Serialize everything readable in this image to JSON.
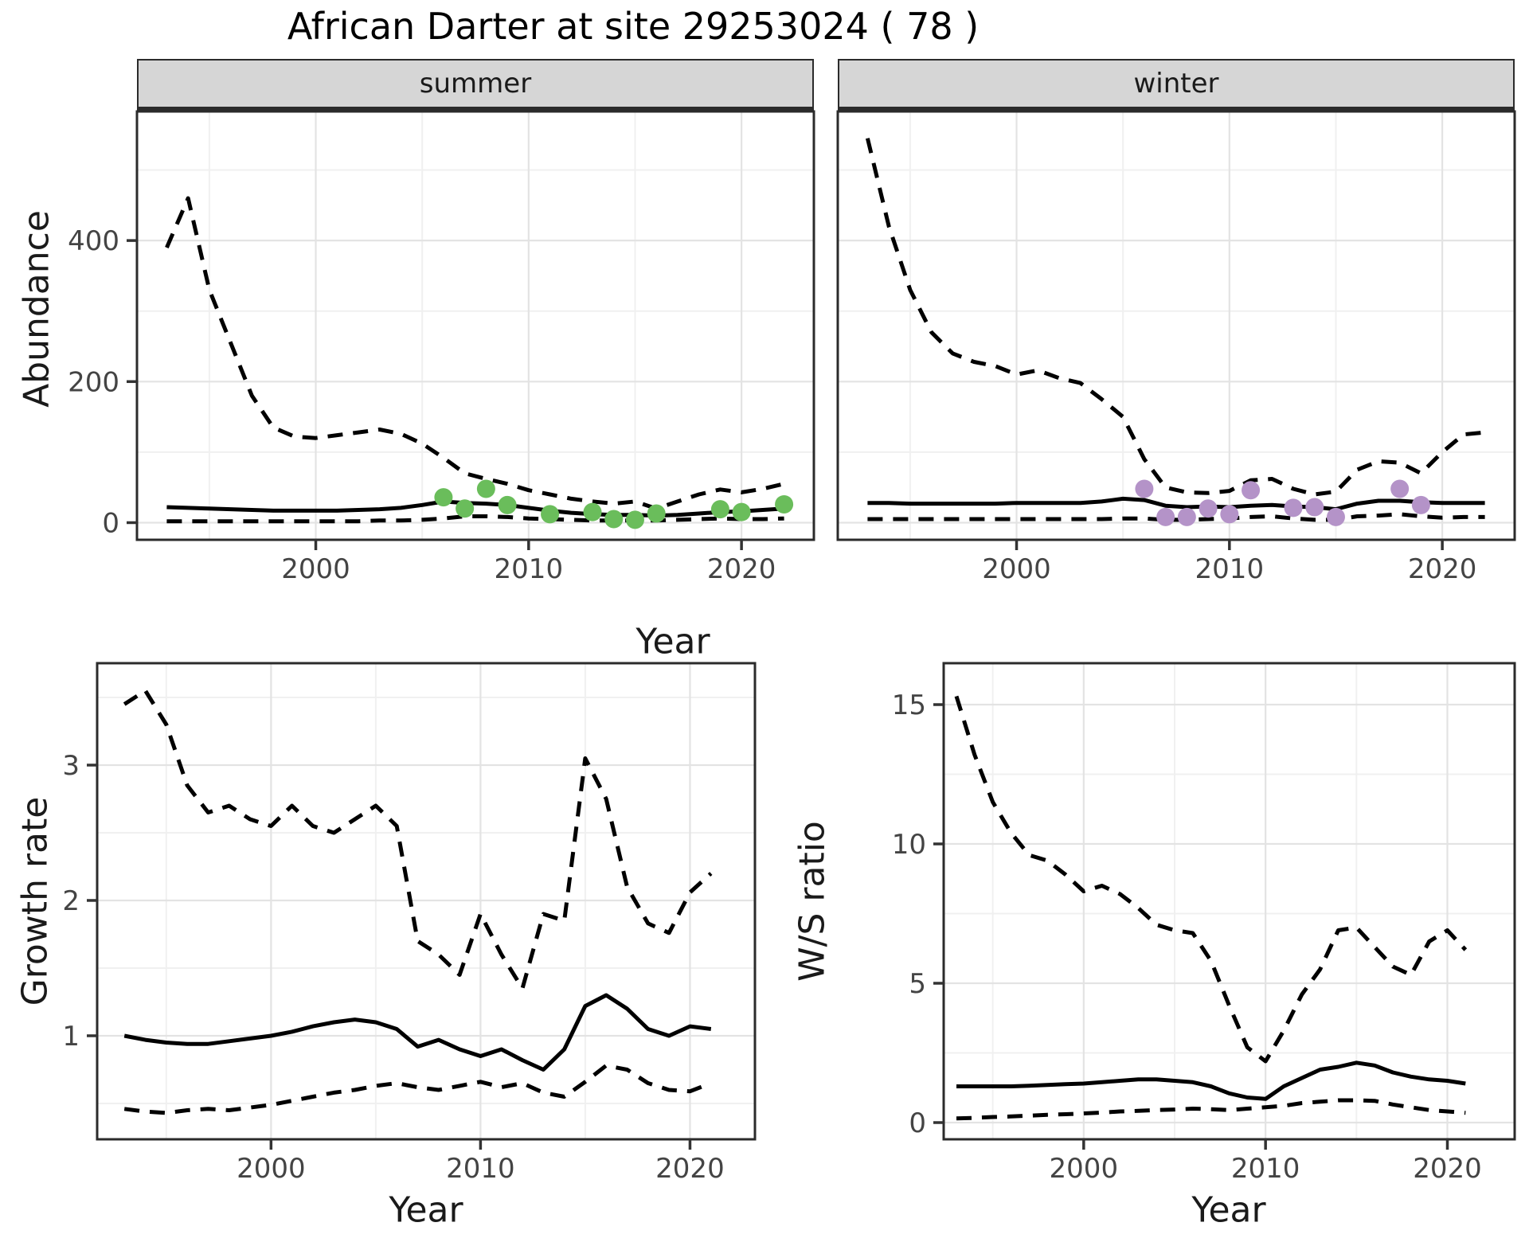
{
  "title": "African Darter at site 29253024 ( 78 )",
  "facets": [
    {
      "label": "summer"
    },
    {
      "label": "winter"
    }
  ],
  "axes": {
    "top_y": "Abundance",
    "top_x": "Year",
    "bottom_left_y": "Growth rate",
    "bottom_left_x": "Year",
    "bottom_right_y": "W/S ratio",
    "bottom_right_x": "Year"
  },
  "colors": {
    "summer_point": "#6abd5b",
    "winter_point": "#b493c8",
    "line": "#000000",
    "strip_bg": "#d6d6d6",
    "grid_major": "#e3e3e3",
    "grid_minor": "#f0f0f0",
    "panel_border": "#2b2b2b",
    "tick_text": "#444444"
  },
  "chart_data": [
    {
      "panel": "summer",
      "type": "line",
      "facet_label": "summer",
      "xlabel": "Year",
      "ylabel": "Abundance",
      "xlim": [
        1991.6,
        2023.4
      ],
      "ylim": [
        -24.3,
        583
      ],
      "xticks": [
        2000,
        2010,
        2020
      ],
      "yticks": [
        0,
        200,
        400
      ],
      "xticks_minor": [
        1995,
        2005,
        2015
      ],
      "yticks_minor": [
        100,
        300,
        500
      ],
      "x": [
        1993,
        1994,
        1995,
        1996,
        1997,
        1998,
        1999,
        2000,
        2001,
        2002,
        2003,
        2004,
        2005,
        2006,
        2007,
        2008,
        2009,
        2010,
        2011,
        2012,
        2013,
        2014,
        2015,
        2016,
        2017,
        2018,
        2019,
        2020,
        2021,
        2022
      ],
      "series": [
        {
          "name": "upper_ci",
          "style": "dashed",
          "values": [
            390,
            460,
            330,
            255,
            180,
            135,
            122,
            120,
            124,
            128,
            132,
            126,
            112,
            92,
            70,
            62,
            55,
            46,
            40,
            34,
            30,
            27,
            30,
            20,
            30,
            40,
            47,
            43,
            48,
            55
          ]
        },
        {
          "name": "mean",
          "style": "solid",
          "values": [
            22,
            21,
            20,
            19,
            18,
            17,
            17,
            17,
            17,
            18,
            19,
            21,
            25,
            30,
            28,
            27,
            25,
            21,
            17,
            14,
            12,
            11,
            11,
            10,
            11,
            13,
            15,
            16,
            18,
            20
          ]
        },
        {
          "name": "lower_ci",
          "style": "dashed",
          "values": [
            2,
            2,
            2,
            2,
            2,
            2,
            2,
            2,
            2,
            2,
            3,
            3,
            4,
            6,
            9,
            9,
            8,
            6,
            5,
            4,
            3,
            3,
            3,
            3,
            4,
            5,
            6,
            5,
            5,
            6
          ]
        }
      ],
      "points": {
        "name": "observed-counts",
        "color_key": "summer_point",
        "data": [
          [
            2006,
            36
          ],
          [
            2007,
            20
          ],
          [
            2008,
            48
          ],
          [
            2009,
            25
          ],
          [
            2011,
            12
          ],
          [
            2013,
            15
          ],
          [
            2014,
            5
          ],
          [
            2015,
            4
          ],
          [
            2016,
            13
          ],
          [
            2019,
            19
          ],
          [
            2020,
            15
          ],
          [
            2022,
            26
          ]
        ]
      }
    },
    {
      "panel": "winter",
      "type": "line",
      "facet_label": "winter",
      "xlabel": "Year",
      "ylabel": "Abundance",
      "xlim": [
        1991.6,
        2023.4
      ],
      "ylim": [
        -24.3,
        583
      ],
      "xticks": [
        2000,
        2010,
        2020
      ],
      "yticks": [
        0,
        200,
        400
      ],
      "xticks_minor": [
        1995,
        2005,
        2015
      ],
      "yticks_minor": [
        100,
        300,
        500
      ],
      "x": [
        1993,
        1994,
        1995,
        1996,
        1997,
        1998,
        1999,
        2000,
        2001,
        2002,
        2003,
        2004,
        2005,
        2006,
        2007,
        2008,
        2009,
        2010,
        2011,
        2012,
        2013,
        2014,
        2015,
        2016,
        2017,
        2018,
        2019,
        2020,
        2021,
        2022
      ],
      "series": [
        {
          "name": "upper_ci",
          "style": "dashed",
          "values": [
            545,
            420,
            330,
            270,
            240,
            228,
            222,
            210,
            216,
            205,
            198,
            175,
            150,
            90,
            50,
            43,
            42,
            45,
            60,
            62,
            48,
            40,
            44,
            75,
            87,
            85,
            70,
            100,
            125,
            128
          ]
        },
        {
          "name": "mean",
          "style": "solid",
          "values": [
            28,
            28,
            27,
            27,
            27,
            27,
            27,
            28,
            28,
            28,
            28,
            30,
            34,
            32,
            24,
            22,
            23,
            22,
            24,
            25,
            23,
            22,
            19,
            27,
            31,
            31,
            29,
            28,
            28,
            28
          ]
        },
        {
          "name": "lower_ci",
          "style": "dashed",
          "values": [
            5,
            5,
            5,
            5,
            5,
            5,
            5,
            5,
            5,
            5,
            5,
            5,
            6,
            6,
            4,
            4,
            5,
            6,
            8,
            9,
            6,
            4,
            4,
            9,
            10,
            12,
            9,
            7,
            8,
            8
          ]
        }
      ],
      "points": {
        "name": "observed-counts",
        "color_key": "winter_point",
        "data": [
          [
            2006,
            48
          ],
          [
            2007,
            8
          ],
          [
            2008,
            8
          ],
          [
            2009,
            20
          ],
          [
            2010,
            12
          ],
          [
            2011,
            46
          ],
          [
            2013,
            21
          ],
          [
            2014,
            22
          ],
          [
            2015,
            8
          ],
          [
            2018,
            48
          ],
          [
            2019,
            25
          ]
        ]
      }
    },
    {
      "panel": "growth",
      "type": "line",
      "facet_label": "",
      "xlabel": "Year",
      "ylabel": "Growth rate",
      "xlim": [
        1991.7,
        2023.1
      ],
      "ylim": [
        0.235,
        3.753
      ],
      "xticks": [
        2000,
        2010,
        2020
      ],
      "yticks": [
        1,
        2,
        3
      ],
      "xticks_minor": [
        1995,
        2005,
        2015
      ],
      "yticks_minor": [
        0.5,
        1.5,
        2.5,
        3.5
      ],
      "x": [
        1993,
        1994,
        1995,
        1996,
        1997,
        1998,
        1999,
        2000,
        2001,
        2002,
        2003,
        2004,
        2005,
        2006,
        2007,
        2008,
        2009,
        2010,
        2011,
        2012,
        2013,
        2014,
        2015,
        2016,
        2017,
        2018,
        2019,
        2020,
        2021
      ],
      "series": [
        {
          "name": "upper_ci",
          "style": "dashed",
          "values": [
            3.45,
            3.55,
            3.3,
            2.85,
            2.65,
            2.7,
            2.6,
            2.55,
            2.7,
            2.55,
            2.5,
            2.6,
            2.7,
            2.55,
            1.7,
            1.6,
            1.45,
            1.9,
            1.6,
            1.35,
            1.9,
            1.85,
            3.05,
            2.75,
            2.1,
            1.83,
            1.76,
            2.06,
            2.2
          ]
        },
        {
          "name": "mean",
          "style": "solid",
          "values": [
            1.0,
            0.97,
            0.95,
            0.94,
            0.94,
            0.96,
            0.98,
            1.0,
            1.03,
            1.07,
            1.1,
            1.12,
            1.1,
            1.05,
            0.92,
            0.97,
            0.9,
            0.85,
            0.9,
            0.82,
            0.75,
            0.9,
            1.22,
            1.3,
            1.2,
            1.05,
            1.0,
            1.07,
            1.05
          ]
        },
        {
          "name": "lower_ci",
          "style": "dashed",
          "values": [
            0.46,
            0.44,
            0.43,
            0.45,
            0.46,
            0.45,
            0.47,
            0.49,
            0.52,
            0.55,
            0.58,
            0.6,
            0.63,
            0.65,
            0.62,
            0.6,
            0.63,
            0.66,
            0.62,
            0.65,
            0.58,
            0.55,
            0.66,
            0.78,
            0.75,
            0.65,
            0.6,
            0.59,
            0.65
          ]
        }
      ],
      "points": null
    },
    {
      "panel": "ws",
      "type": "line",
      "facet_label": "",
      "xlabel": "Year",
      "ylabel": "W/S ratio",
      "xlim": [
        1992.3,
        2023.7
      ],
      "ylim": [
        -0.6,
        16.486
      ],
      "xticks": [
        2000,
        2010,
        2020
      ],
      "yticks": [
        0,
        5,
        10,
        15
      ],
      "xticks_minor": [
        1995,
        2005,
        2015
      ],
      "yticks_minor": [
        2.5,
        7.5,
        12.5
      ],
      "x": [
        1993,
        1994,
        1995,
        1996,
        1997,
        1998,
        1999,
        2000,
        2001,
        2002,
        2003,
        2004,
        2005,
        2006,
        2007,
        2008,
        2009,
        2010,
        2011,
        2012,
        2013,
        2014,
        2015,
        2016,
        2017,
        2018,
        2019,
        2020,
        2021
      ],
      "series": [
        {
          "name": "upper_ci",
          "style": "dashed",
          "values": [
            15.3,
            13.2,
            11.5,
            10.4,
            9.6,
            9.4,
            8.9,
            8.3,
            8.5,
            8.2,
            7.7,
            7.1,
            6.9,
            6.8,
            5.8,
            4.2,
            2.7,
            2.2,
            3.3,
            4.6,
            5.5,
            6.9,
            7.0,
            6.3,
            5.6,
            5.3,
            6.5,
            6.9,
            6.2
          ]
        },
        {
          "name": "mean",
          "style": "solid",
          "values": [
            1.3,
            1.3,
            1.3,
            1.3,
            1.32,
            1.35,
            1.38,
            1.4,
            1.45,
            1.5,
            1.55,
            1.55,
            1.5,
            1.45,
            1.3,
            1.05,
            0.9,
            0.85,
            1.3,
            1.6,
            1.9,
            2.0,
            2.15,
            2.05,
            1.8,
            1.65,
            1.55,
            1.5,
            1.4
          ]
        },
        {
          "name": "lower_ci",
          "style": "dashed",
          "values": [
            0.15,
            0.17,
            0.2,
            0.22,
            0.25,
            0.28,
            0.3,
            0.33,
            0.36,
            0.4,
            0.42,
            0.45,
            0.47,
            0.5,
            0.48,
            0.45,
            0.5,
            0.55,
            0.6,
            0.7,
            0.75,
            0.8,
            0.8,
            0.78,
            0.65,
            0.55,
            0.45,
            0.4,
            0.35
          ]
        }
      ],
      "points": null
    }
  ]
}
